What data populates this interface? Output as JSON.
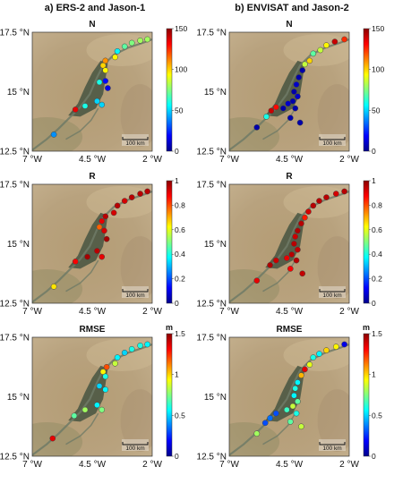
{
  "columns": [
    {
      "label": "a) ERS-2 and Jason-1"
    },
    {
      "label": "b) ENVISAT and Jason-2"
    }
  ],
  "colors": {
    "colormap": [
      "#00008b",
      "#0000ff",
      "#0080ff",
      "#00ffff",
      "#80ff80",
      "#ffff00",
      "#ff8000",
      "#ff0000",
      "#8b0000"
    ],
    "map_background": "#b8a27e",
    "inner_delta": "#4f5a45",
    "river": "#6f7a66"
  },
  "scale_bar": "100 km",
  "chart_data": [
    {
      "type": "scatter",
      "title": "N",
      "column": 0,
      "row": 0,
      "colorbar": {
        "min": 0,
        "max": 150,
        "ticks": [
          0,
          50,
          100,
          150
        ],
        "unit": ""
      },
      "x_ticks": [
        "7 °W",
        "4.5 °W",
        "2 °W"
      ],
      "x_tick_values": [
        -7,
        -4.5,
        -2
      ],
      "y_ticks": [
        "17.5 °N",
        "15 °N",
        "12.5 °N"
      ],
      "y_tick_values": [
        17.5,
        15,
        12.5
      ],
      "xlim": [
        -7,
        -2
      ],
      "ylim": [
        12.5,
        17.5
      ],
      "points": [
        {
          "lon": -2.2,
          "lat": 17.2,
          "value": 80
        },
        {
          "lon": -2.5,
          "lat": 17.15,
          "value": 80
        },
        {
          "lon": -2.85,
          "lat": 17.05,
          "value": 75
        },
        {
          "lon": -3.15,
          "lat": 16.9,
          "value": 70
        },
        {
          "lon": -3.45,
          "lat": 16.7,
          "value": 55
        },
        {
          "lon": -3.55,
          "lat": 16.45,
          "value": 95
        },
        {
          "lon": -3.95,
          "lat": 16.3,
          "value": 110
        },
        {
          "lon": -4.05,
          "lat": 16.1,
          "value": 100
        },
        {
          "lon": -3.95,
          "lat": 15.9,
          "value": 95
        },
        {
          "lon": -4.2,
          "lat": 15.4,
          "value": 60
        },
        {
          "lon": -3.95,
          "lat": 15.45,
          "value": 20
        },
        {
          "lon": -3.85,
          "lat": 15.15,
          "value": 15
        },
        {
          "lon": -4.3,
          "lat": 14.6,
          "value": 50
        },
        {
          "lon": -4.1,
          "lat": 14.45,
          "value": 50
        },
        {
          "lon": -4.8,
          "lat": 14.4,
          "value": 60
        },
        {
          "lon": -5.2,
          "lat": 14.25,
          "value": 135
        },
        {
          "lon": -6.1,
          "lat": 13.2,
          "value": 40
        }
      ]
    },
    {
      "type": "scatter",
      "title": "N",
      "column": 1,
      "row": 0,
      "colorbar": {
        "min": 0,
        "max": 150,
        "ticks": [
          0,
          50,
          100,
          150
        ],
        "unit": ""
      },
      "x_ticks": [
        "7 °W",
        "4.5 °W",
        "2 °W"
      ],
      "x_tick_values": [
        -7,
        -4.5,
        -2
      ],
      "y_ticks": [
        "17.5 °N",
        "15 °N",
        "12.5 °N"
      ],
      "y_tick_values": [
        17.5,
        15,
        12.5
      ],
      "xlim": [
        -7,
        -2
      ],
      "ylim": [
        12.5,
        17.5
      ],
      "points": [
        {
          "lon": -2.2,
          "lat": 17.2,
          "value": 125
        },
        {
          "lon": -2.6,
          "lat": 17.1,
          "value": 140
        },
        {
          "lon": -2.95,
          "lat": 16.95,
          "value": 95
        },
        {
          "lon": -3.2,
          "lat": 16.75,
          "value": 85
        },
        {
          "lon": -3.5,
          "lat": 16.6,
          "value": 70
        },
        {
          "lon": -3.65,
          "lat": 16.3,
          "value": 100
        },
        {
          "lon": -3.85,
          "lat": 16.15,
          "value": 85
        },
        {
          "lon": -3.95,
          "lat": 15.9,
          "value": 5
        },
        {
          "lon": -4.1,
          "lat": 15.6,
          "value": 5
        },
        {
          "lon": -4.2,
          "lat": 15.3,
          "value": 10
        },
        {
          "lon": -4.3,
          "lat": 15.0,
          "value": 5
        },
        {
          "lon": -4.15,
          "lat": 14.8,
          "value": 10
        },
        {
          "lon": -4.35,
          "lat": 14.6,
          "value": 5
        },
        {
          "lon": -4.55,
          "lat": 14.5,
          "value": 10
        },
        {
          "lon": -4.25,
          "lat": 14.3,
          "value": 5
        },
        {
          "lon": -4.75,
          "lat": 14.3,
          "value": 5
        },
        {
          "lon": -5.05,
          "lat": 14.35,
          "value": 130
        },
        {
          "lon": -5.25,
          "lat": 14.2,
          "value": 140
        },
        {
          "lon": -5.45,
          "lat": 13.95,
          "value": 60
        },
        {
          "lon": -4.45,
          "lat": 13.9,
          "value": 5
        },
        {
          "lon": -4.05,
          "lat": 13.7,
          "value": 5
        },
        {
          "lon": -5.85,
          "lat": 13.5,
          "value": 5
        }
      ]
    },
    {
      "type": "scatter",
      "title": "R",
      "column": 0,
      "row": 1,
      "colorbar": {
        "min": 0,
        "max": 1,
        "ticks": [
          0,
          0.2,
          0.4,
          0.6,
          0.8,
          1
        ],
        "unit": ""
      },
      "x_ticks": [
        "7 °W",
        "4.5 °W",
        "2 °W"
      ],
      "x_tick_values": [
        -7,
        -4.5,
        -2
      ],
      "y_ticks": [
        "17.5 °N",
        "15 °N",
        "12.5 °N"
      ],
      "y_tick_values": [
        17.5,
        15,
        12.5
      ],
      "xlim": [
        -7,
        -2
      ],
      "ylim": [
        12.5,
        17.5
      ],
      "points": [
        {
          "lon": -2.2,
          "lat": 17.2,
          "value": 0.95
        },
        {
          "lon": -2.5,
          "lat": 17.1,
          "value": 0.95
        },
        {
          "lon": -2.85,
          "lat": 16.95,
          "value": 0.95
        },
        {
          "lon": -3.15,
          "lat": 16.8,
          "value": 0.92
        },
        {
          "lon": -3.45,
          "lat": 16.6,
          "value": 0.95
        },
        {
          "lon": -3.6,
          "lat": 16.3,
          "value": 0.92
        },
        {
          "lon": -3.95,
          "lat": 16.15,
          "value": 0.95
        },
        {
          "lon": -4.1,
          "lat": 15.95,
          "value": 0.9
        },
        {
          "lon": -4.2,
          "lat": 15.7,
          "value": 0.78
        },
        {
          "lon": -4.0,
          "lat": 15.55,
          "value": 0.92
        },
        {
          "lon": -3.9,
          "lat": 15.2,
          "value": 0.97
        },
        {
          "lon": -4.3,
          "lat": 14.7,
          "value": 0.95
        },
        {
          "lon": -4.1,
          "lat": 14.45,
          "value": 0.9
        },
        {
          "lon": -4.7,
          "lat": 14.45,
          "value": 0.97
        },
        {
          "lon": -5.2,
          "lat": 14.25,
          "value": 0.88
        },
        {
          "lon": -6.1,
          "lat": 13.2,
          "value": 0.65
        }
      ]
    },
    {
      "type": "scatter",
      "title": "R",
      "column": 1,
      "row": 1,
      "colorbar": {
        "min": 0,
        "max": 1,
        "ticks": [
          0,
          0.2,
          0.4,
          0.6,
          0.8,
          1
        ],
        "unit": ""
      },
      "x_ticks": [
        "7 °W",
        "4.5 °W",
        "2 °W"
      ],
      "x_tick_values": [
        -7,
        -4.5,
        -2
      ],
      "y_ticks": [
        "17.5 °N",
        "15 °N",
        "12.5 °N"
      ],
      "y_tick_values": [
        17.5,
        15,
        12.5
      ],
      "xlim": [
        -7,
        -2
      ],
      "ylim": [
        12.5,
        17.5
      ],
      "points": [
        {
          "lon": -2.2,
          "lat": 17.2,
          "value": 0.95
        },
        {
          "lon": -2.55,
          "lat": 17.1,
          "value": 0.92
        },
        {
          "lon": -2.95,
          "lat": 16.95,
          "value": 0.95
        },
        {
          "lon": -3.25,
          "lat": 16.8,
          "value": 0.95
        },
        {
          "lon": -3.5,
          "lat": 16.6,
          "value": 0.95
        },
        {
          "lon": -3.7,
          "lat": 16.35,
          "value": 0.92
        },
        {
          "lon": -3.85,
          "lat": 16.1,
          "value": 0.85
        },
        {
          "lon": -4.0,
          "lat": 15.85,
          "value": 0.95
        },
        {
          "lon": -4.15,
          "lat": 15.55,
          "value": 0.96
        },
        {
          "lon": -4.25,
          "lat": 15.3,
          "value": 0.93
        },
        {
          "lon": -4.3,
          "lat": 15.0,
          "value": 0.95
        },
        {
          "lon": -4.15,
          "lat": 14.75,
          "value": 0.94
        },
        {
          "lon": -4.4,
          "lat": 14.55,
          "value": 0.95
        },
        {
          "lon": -4.6,
          "lat": 14.4,
          "value": 0.9
        },
        {
          "lon": -4.2,
          "lat": 14.3,
          "value": 0.95
        },
        {
          "lon": -5.05,
          "lat": 14.3,
          "value": 0.93
        },
        {
          "lon": -5.3,
          "lat": 14.1,
          "value": 0.96
        },
        {
          "lon": -4.45,
          "lat": 13.95,
          "value": 0.88
        },
        {
          "lon": -3.95,
          "lat": 13.75,
          "value": 0.94
        },
        {
          "lon": -5.85,
          "lat": 13.45,
          "value": 0.9
        }
      ]
    },
    {
      "type": "scatter",
      "title": "RMSE",
      "column": 0,
      "row": 2,
      "colorbar": {
        "min": 0,
        "max": 1.5,
        "ticks": [
          0,
          0.5,
          1,
          1.5
        ],
        "unit": "m"
      },
      "x_ticks": [
        "7 °W",
        "4.5 °W",
        "2 °W"
      ],
      "x_tick_values": [
        -7,
        -4.5,
        -2
      ],
      "y_ticks": [
        "17.5 °N",
        "15 °N",
        "12.5 °N"
      ],
      "y_tick_values": [
        17.5,
        15,
        12.5
      ],
      "xlim": [
        -7,
        -2
      ],
      "ylim": [
        12.5,
        17.5
      ],
      "points": [
        {
          "lon": -2.2,
          "lat": 17.2,
          "value": 0.55
        },
        {
          "lon": -2.5,
          "lat": 17.15,
          "value": 0.6
        },
        {
          "lon": -2.85,
          "lat": 17.0,
          "value": 0.6
        },
        {
          "lon": -3.15,
          "lat": 16.85,
          "value": 0.5
        },
        {
          "lon": -3.45,
          "lat": 16.65,
          "value": 0.55
        },
        {
          "lon": -3.55,
          "lat": 16.4,
          "value": 0.85
        },
        {
          "lon": -3.9,
          "lat": 16.25,
          "value": 1.2
        },
        {
          "lon": -4.05,
          "lat": 16.05,
          "value": 0.95
        },
        {
          "lon": -3.95,
          "lat": 15.85,
          "value": 0.6
        },
        {
          "lon": -4.2,
          "lat": 15.45,
          "value": 0.5
        },
        {
          "lon": -3.95,
          "lat": 15.3,
          "value": 0.55
        },
        {
          "lon": -4.3,
          "lat": 14.65,
          "value": 0.55
        },
        {
          "lon": -4.1,
          "lat": 14.45,
          "value": 0.75
        },
        {
          "lon": -4.8,
          "lat": 14.45,
          "value": 0.8
        },
        {
          "lon": -5.25,
          "lat": 14.2,
          "value": 0.7
        },
        {
          "lon": -6.15,
          "lat": 13.25,
          "value": 1.35
        }
      ]
    },
    {
      "type": "scatter",
      "title": "RMSE",
      "column": 1,
      "row": 2,
      "colorbar": {
        "min": 0,
        "max": 1.5,
        "ticks": [
          0,
          0.5,
          1,
          1.5
        ],
        "unit": "m"
      },
      "x_ticks": [
        "7 °W",
        "4.5 °W",
        "2 °W"
      ],
      "x_tick_values": [
        -7,
        -4.5,
        -2
      ],
      "y_ticks": [
        "17.5 °N",
        "15 °N",
        "12.5 °N"
      ],
      "y_tick_values": [
        17.5,
        15,
        12.5
      ],
      "xlim": [
        -7,
        -2
      ],
      "ylim": [
        12.5,
        17.5
      ],
      "points": [
        {
          "lon": -2.2,
          "lat": 17.2,
          "value": 0.15
        },
        {
          "lon": -2.55,
          "lat": 17.1,
          "value": 0.95
        },
        {
          "lon": -2.95,
          "lat": 16.95,
          "value": 1.0
        },
        {
          "lon": -3.25,
          "lat": 16.8,
          "value": 0.55
        },
        {
          "lon": -3.5,
          "lat": 16.65,
          "value": 0.6
        },
        {
          "lon": -3.65,
          "lat": 16.35,
          "value": 0.9
        },
        {
          "lon": -3.85,
          "lat": 16.15,
          "value": 1.35
        },
        {
          "lon": -4.0,
          "lat": 15.9,
          "value": 1.05
        },
        {
          "lon": -4.15,
          "lat": 15.6,
          "value": 0.55
        },
        {
          "lon": -4.25,
          "lat": 15.35,
          "value": 0.6
        },
        {
          "lon": -4.3,
          "lat": 15.05,
          "value": 0.55
        },
        {
          "lon": -4.15,
          "lat": 14.8,
          "value": 0.7
        },
        {
          "lon": -4.35,
          "lat": 14.6,
          "value": 0.85
        },
        {
          "lon": -4.6,
          "lat": 14.45,
          "value": 0.65
        },
        {
          "lon": -4.2,
          "lat": 14.3,
          "value": 0.6
        },
        {
          "lon": -5.05,
          "lat": 14.3,
          "value": 0.3
        },
        {
          "lon": -5.3,
          "lat": 14.1,
          "value": 0.35
        },
        {
          "lon": -5.5,
          "lat": 13.9,
          "value": 0.3
        },
        {
          "lon": -4.45,
          "lat": 13.95,
          "value": 0.7
        },
        {
          "lon": -4.0,
          "lat": 13.75,
          "value": 0.85
        },
        {
          "lon": -5.85,
          "lat": 13.45,
          "value": 0.8
        }
      ]
    }
  ]
}
